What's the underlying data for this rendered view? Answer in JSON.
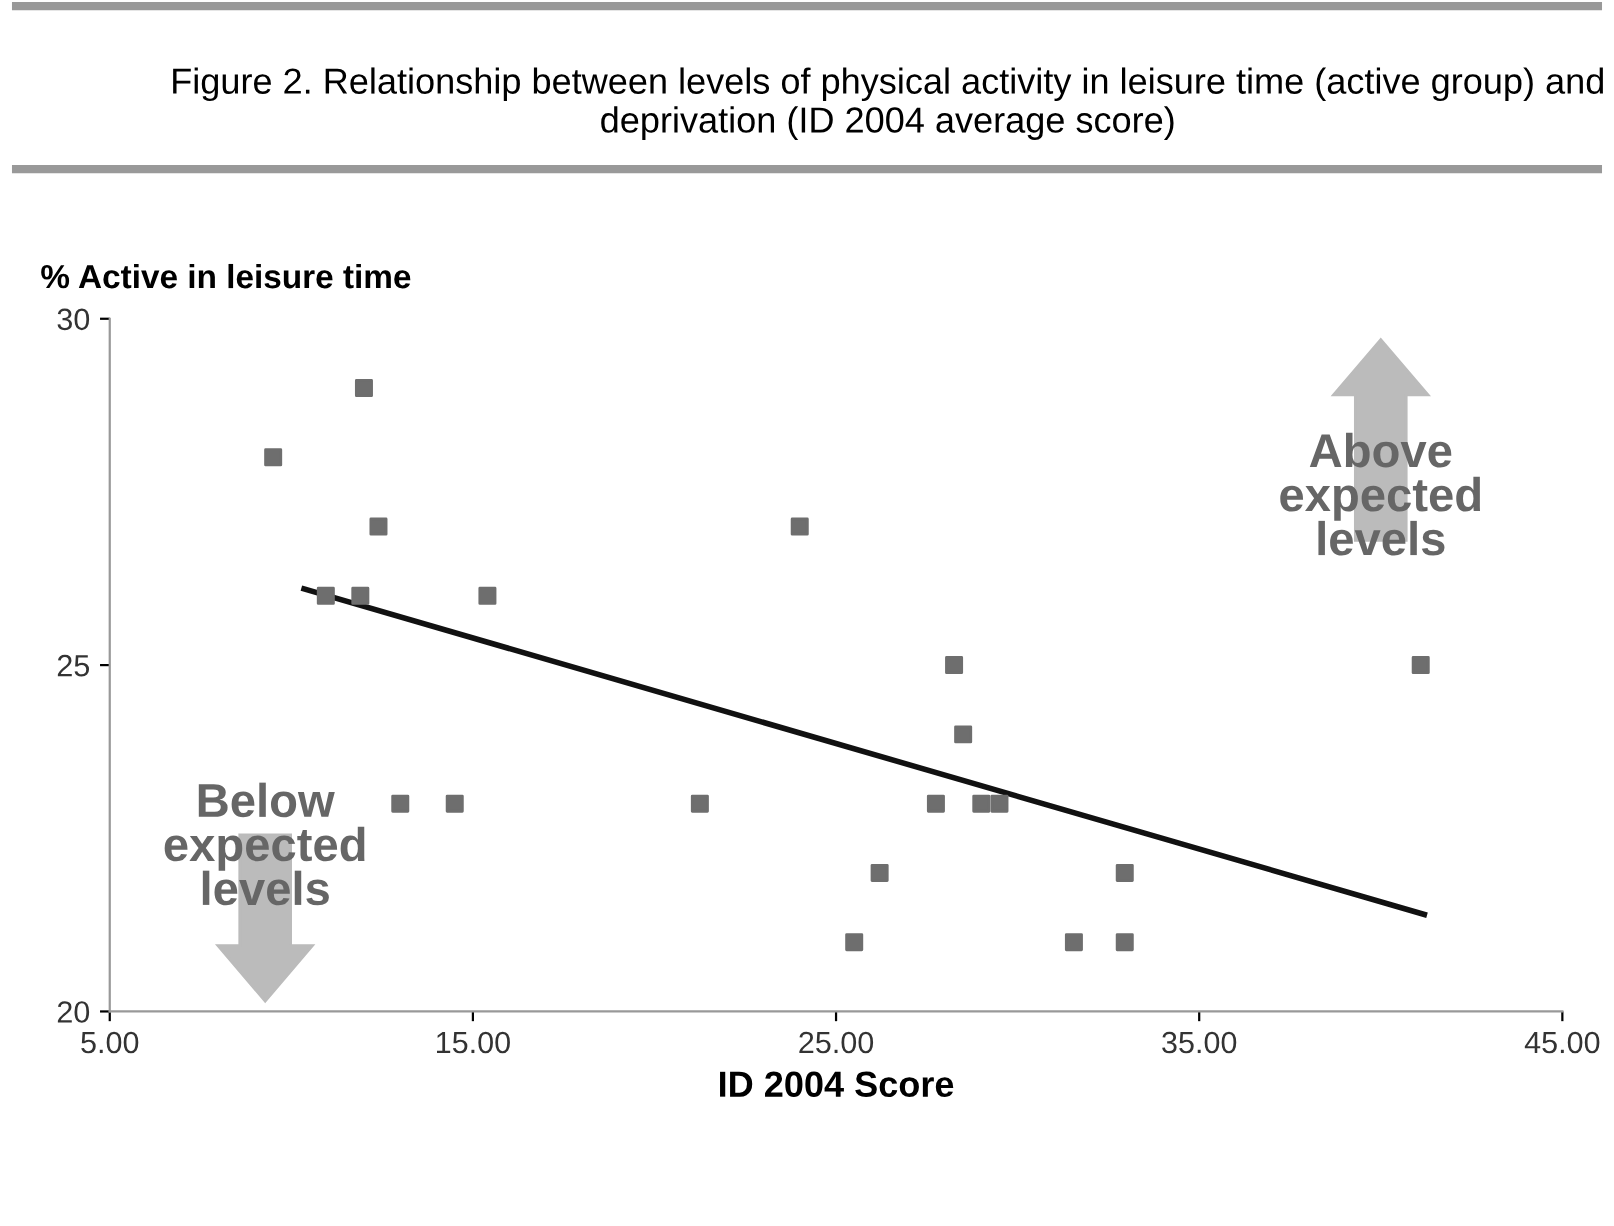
{
  "chart_data": {
    "type": "scatter",
    "title": "Figure 2. Relationship between levels of physical activity in leisure time (active group) and deprivation (ID 2004 average score)",
    "xlabel": "ID 2004 Score",
    "ylabel": "% Active in leisure time",
    "xlim": [
      5,
      45
    ],
    "xticks": [
      {
        "value": 5,
        "label": "5.00"
      },
      {
        "value": 15,
        "label": "15.00"
      },
      {
        "value": 25,
        "label": "25.00"
      },
      {
        "value": 35,
        "label": "35.00"
      },
      {
        "value": 45,
        "label": "45.00"
      }
    ],
    "ylim": [
      20,
      30
    ],
    "yticks": [
      20,
      25,
      30
    ],
    "grid": false,
    "marker": "square",
    "series": [
      {
        "color": "#6e6e6e",
        "x": [
          9.5,
          12.0,
          12.4,
          24.0,
          10.95,
          11.9,
          15.4,
          13.0,
          14.5,
          21.25,
          28.25,
          28.5,
          27.75,
          29.0,
          29.5,
          26.2,
          25.5,
          31.55,
          32.95,
          32.95,
          41.1
        ],
        "values": [
          28,
          29,
          27,
          27,
          26,
          26,
          26,
          23,
          23,
          23,
          25,
          24,
          23,
          23,
          23,
          22,
          21,
          21,
          21,
          22,
          25
        ]
      },
      {
        "type": "line",
        "color": "#111111",
        "x": [
          10.35,
          41.2
        ],
        "values": [
          26.1,
          21.4
        ],
        "marker": "none",
        "line_style": "solid"
      }
    ],
    "annotations": [
      "Above expected levels",
      "Below expected levels"
    ]
  }
}
